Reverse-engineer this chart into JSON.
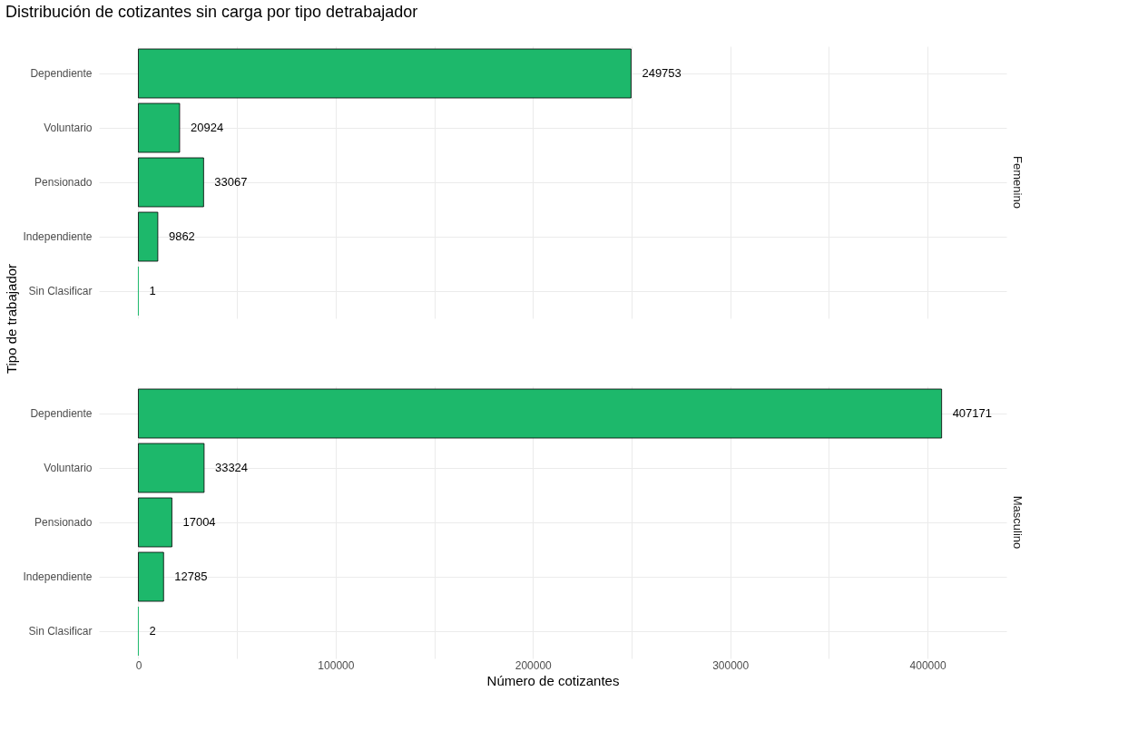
{
  "chart_data": [
    {
      "type": "bar",
      "orientation": "horizontal",
      "title": "Distribución de cotizantes sin carga por tipo detrabajador",
      "ylabel": "Tipo de trabajador",
      "annotations": [
        "Femenino"
      ],
      "categories": [
        "Dependiente",
        "Voluntario",
        "Pensionado",
        "Independiente",
        "Sin Clasificar"
      ],
      "values": [
        249753,
        20924,
        33067,
        9862,
        1
      ],
      "color": "#1db86b",
      "data_labels": true,
      "xlim": [
        -20000,
        440000
      ],
      "xticks": [
        0,
        {
          "value": 50000,
          "label": null
        },
        100000,
        {
          "value": 150000,
          "label": null
        },
        200000,
        {
          "value": 250000,
          "label": null
        },
        300000,
        {
          "value": 350000,
          "label": null
        },
        400000
      ],
      "grid": true,
      "tick_labels": "y"
    },
    {
      "type": "bar",
      "orientation": "horizontal",
      "xlabel": "Número de cotizantes",
      "annotations": [
        "Masculino"
      ],
      "categories": [
        "Dependiente",
        "Voluntario",
        "Pensionado",
        "Independiente",
        "Sin Clasificar"
      ],
      "values": [
        407171,
        33324,
        17004,
        12785,
        2
      ],
      "color": "#1db86b",
      "data_labels": true,
      "xlim": [
        -20000,
        440000
      ],
      "xticks": [
        0,
        {
          "value": 50000,
          "label": null
        },
        100000,
        {
          "value": 150000,
          "label": null
        },
        200000,
        {
          "value": 250000,
          "label": null
        },
        300000,
        {
          "value": 350000,
          "label": null
        },
        400000
      ],
      "grid": true
    }
  ]
}
